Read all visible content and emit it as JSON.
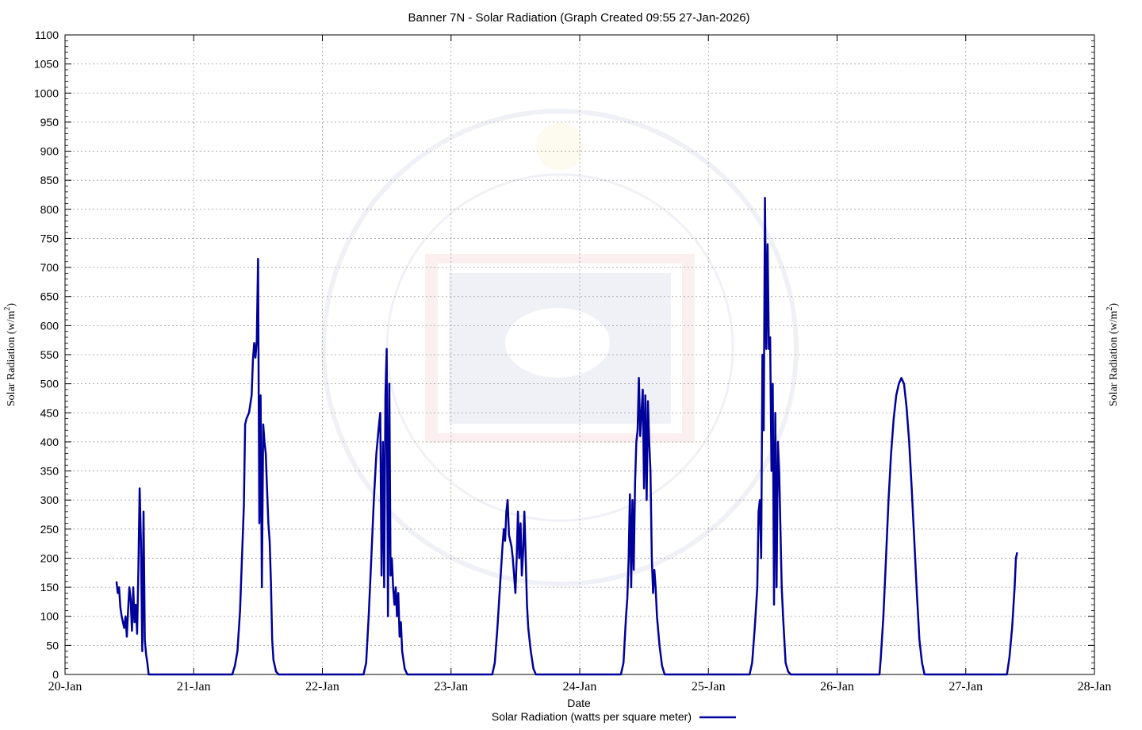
{
  "chart_data": {
    "type": "line",
    "title": "Banner 7N - Solar Radiation (Graph Created 09:55 27-Jan-2026)",
    "xlabel": "Date",
    "ylabel": "Solar Radiation (w/m",
    "ylabel_sup": "2",
    "ylabel_close": ")",
    "ylim": [
      0,
      1100
    ],
    "yticks": [
      0,
      50,
      100,
      150,
      200,
      250,
      300,
      350,
      400,
      450,
      500,
      550,
      600,
      650,
      700,
      750,
      800,
      850,
      900,
      950,
      1000,
      1050,
      1100
    ],
    "xlim_days": [
      20,
      28
    ],
    "xticks": [
      {
        "day": 20,
        "label": "20-Jan"
      },
      {
        "day": 21,
        "label": "21-Jan"
      },
      {
        "day": 22,
        "label": "22-Jan"
      },
      {
        "day": 23,
        "label": "23-Jan"
      },
      {
        "day": 24,
        "label": "24-Jan"
      },
      {
        "day": 25,
        "label": "25-Jan"
      },
      {
        "day": 26,
        "label": "26-Jan"
      },
      {
        "day": 27,
        "label": "27-Jan"
      },
      {
        "day": 28,
        "label": "28-Jan"
      }
    ],
    "grid": true,
    "legend_position": "bottom-center",
    "series": [
      {
        "name": "Solar Radiation (watts per square meter)",
        "color": "#00009b",
        "x_unit": "day of January 2026",
        "points": [
          [
            20.4,
            160
          ],
          [
            20.41,
            140
          ],
          [
            20.42,
            150
          ],
          [
            20.43,
            115
          ],
          [
            20.44,
            100
          ],
          [
            20.45,
            90
          ],
          [
            20.46,
            80
          ],
          [
            20.47,
            100
          ],
          [
            20.48,
            65
          ],
          [
            20.49,
            110
          ],
          [
            20.5,
            150
          ],
          [
            20.51,
            130
          ],
          [
            20.52,
            75
          ],
          [
            20.53,
            150
          ],
          [
            20.54,
            90
          ],
          [
            20.55,
            120
          ],
          [
            20.56,
            70
          ],
          [
            20.57,
            180
          ],
          [
            20.58,
            320
          ],
          [
            20.59,
            230
          ],
          [
            20.6,
            40
          ],
          [
            20.61,
            280
          ],
          [
            20.62,
            60
          ],
          [
            20.63,
            35
          ],
          [
            20.64,
            20
          ],
          [
            20.65,
            0
          ],
          [
            21.3,
            0
          ],
          [
            21.32,
            15
          ],
          [
            21.34,
            40
          ],
          [
            21.36,
            110
          ],
          [
            21.38,
            230
          ],
          [
            21.39,
            290
          ],
          [
            21.4,
            430
          ],
          [
            21.41,
            440
          ],
          [
            21.42,
            445
          ],
          [
            21.43,
            450
          ],
          [
            21.45,
            480
          ],
          [
            21.46,
            540
          ],
          [
            21.47,
            570
          ],
          [
            21.48,
            545
          ],
          [
            21.49,
            575
          ],
          [
            21.5,
            715
          ],
          [
            21.51,
            260
          ],
          [
            21.52,
            480
          ],
          [
            21.53,
            150
          ],
          [
            21.54,
            430
          ],
          [
            21.55,
            400
          ],
          [
            21.56,
            380
          ],
          [
            21.57,
            320
          ],
          [
            21.58,
            260
          ],
          [
            21.59,
            230
          ],
          [
            21.6,
            160
          ],
          [
            21.61,
            60
          ],
          [
            21.62,
            25
          ],
          [
            21.64,
            5
          ],
          [
            21.66,
            0
          ],
          [
            22.32,
            0
          ],
          [
            22.34,
            20
          ],
          [
            22.36,
            100
          ],
          [
            22.38,
            200
          ],
          [
            22.4,
            300
          ],
          [
            22.42,
            380
          ],
          [
            22.44,
            430
          ],
          [
            22.45,
            450
          ],
          [
            22.46,
            170
          ],
          [
            22.47,
            400
          ],
          [
            22.48,
            150
          ],
          [
            22.49,
            480
          ],
          [
            22.5,
            560
          ],
          [
            22.51,
            100
          ],
          [
            22.52,
            500
          ],
          [
            22.53,
            170
          ],
          [
            22.54,
            200
          ],
          [
            22.55,
            150
          ],
          [
            22.56,
            120
          ],
          [
            22.57,
            150
          ],
          [
            22.58,
            100
          ],
          [
            22.59,
            140
          ],
          [
            22.6,
            65
          ],
          [
            22.61,
            90
          ],
          [
            22.62,
            40
          ],
          [
            22.64,
            10
          ],
          [
            22.66,
            0
          ],
          [
            23.32,
            0
          ],
          [
            23.34,
            20
          ],
          [
            23.36,
            80
          ],
          [
            23.38,
            150
          ],
          [
            23.4,
            220
          ],
          [
            23.41,
            250
          ],
          [
            23.42,
            230
          ],
          [
            23.43,
            280
          ],
          [
            23.44,
            300
          ],
          [
            23.45,
            240
          ],
          [
            23.46,
            230
          ],
          [
            23.47,
            220
          ],
          [
            23.48,
            200
          ],
          [
            23.49,
            170
          ],
          [
            23.5,
            140
          ],
          [
            23.51,
            200
          ],
          [
            23.52,
            280
          ],
          [
            23.53,
            200
          ],
          [
            23.54,
            260
          ],
          [
            23.55,
            170
          ],
          [
            23.56,
            210
          ],
          [
            23.57,
            280
          ],
          [
            23.58,
            200
          ],
          [
            23.59,
            120
          ],
          [
            23.6,
            80
          ],
          [
            23.62,
            40
          ],
          [
            23.64,
            10
          ],
          [
            23.66,
            0
          ],
          [
            24.32,
            0
          ],
          [
            24.34,
            20
          ],
          [
            24.35,
            60
          ],
          [
            24.36,
            100
          ],
          [
            24.37,
            130
          ],
          [
            24.38,
            200
          ],
          [
            24.39,
            310
          ],
          [
            24.4,
            150
          ],
          [
            24.41,
            300
          ],
          [
            24.42,
            180
          ],
          [
            24.43,
            330
          ],
          [
            24.44,
            400
          ],
          [
            24.45,
            420
          ],
          [
            24.46,
            510
          ],
          [
            24.47,
            410
          ],
          [
            24.48,
            450
          ],
          [
            24.49,
            490
          ],
          [
            24.5,
            320
          ],
          [
            24.51,
            480
          ],
          [
            24.52,
            300
          ],
          [
            24.53,
            470
          ],
          [
            24.54,
            400
          ],
          [
            24.55,
            350
          ],
          [
            24.56,
            200
          ],
          [
            24.57,
            140
          ],
          [
            24.58,
            180
          ],
          [
            24.59,
            150
          ],
          [
            24.6,
            100
          ],
          [
            24.62,
            50
          ],
          [
            24.64,
            15
          ],
          [
            24.66,
            0
          ],
          [
            25.32,
            0
          ],
          [
            25.34,
            20
          ],
          [
            25.36,
            80
          ],
          [
            25.38,
            150
          ],
          [
            25.39,
            280
          ],
          [
            25.4,
            300
          ],
          [
            25.41,
            200
          ],
          [
            25.42,
            550
          ],
          [
            25.43,
            420
          ],
          [
            25.44,
            820
          ],
          [
            25.45,
            560
          ],
          [
            25.46,
            740
          ],
          [
            25.47,
            560
          ],
          [
            25.48,
            580
          ],
          [
            25.49,
            350
          ],
          [
            25.5,
            500
          ],
          [
            25.51,
            120
          ],
          [
            25.52,
            450
          ],
          [
            25.53,
            150
          ],
          [
            25.54,
            400
          ],
          [
            25.55,
            350
          ],
          [
            25.56,
            250
          ],
          [
            25.57,
            150
          ],
          [
            25.58,
            100
          ],
          [
            25.59,
            60
          ],
          [
            25.6,
            20
          ],
          [
            25.62,
            5
          ],
          [
            25.64,
            0
          ],
          [
            26.33,
            0
          ],
          [
            26.34,
            30
          ],
          [
            26.36,
            100
          ],
          [
            26.38,
            200
          ],
          [
            26.4,
            300
          ],
          [
            26.42,
            380
          ],
          [
            26.44,
            440
          ],
          [
            26.46,
            480
          ],
          [
            26.48,
            500
          ],
          [
            26.5,
            510
          ],
          [
            26.52,
            500
          ],
          [
            26.54,
            460
          ],
          [
            26.56,
            400
          ],
          [
            26.58,
            320
          ],
          [
            26.6,
            230
          ],
          [
            26.62,
            140
          ],
          [
            26.64,
            60
          ],
          [
            26.66,
            20
          ],
          [
            26.68,
            0
          ],
          [
            27.32,
            0
          ],
          [
            27.34,
            30
          ],
          [
            27.36,
            80
          ],
          [
            27.38,
            150
          ],
          [
            27.39,
            200
          ],
          [
            27.4,
            210
          ]
        ]
      }
    ]
  }
}
